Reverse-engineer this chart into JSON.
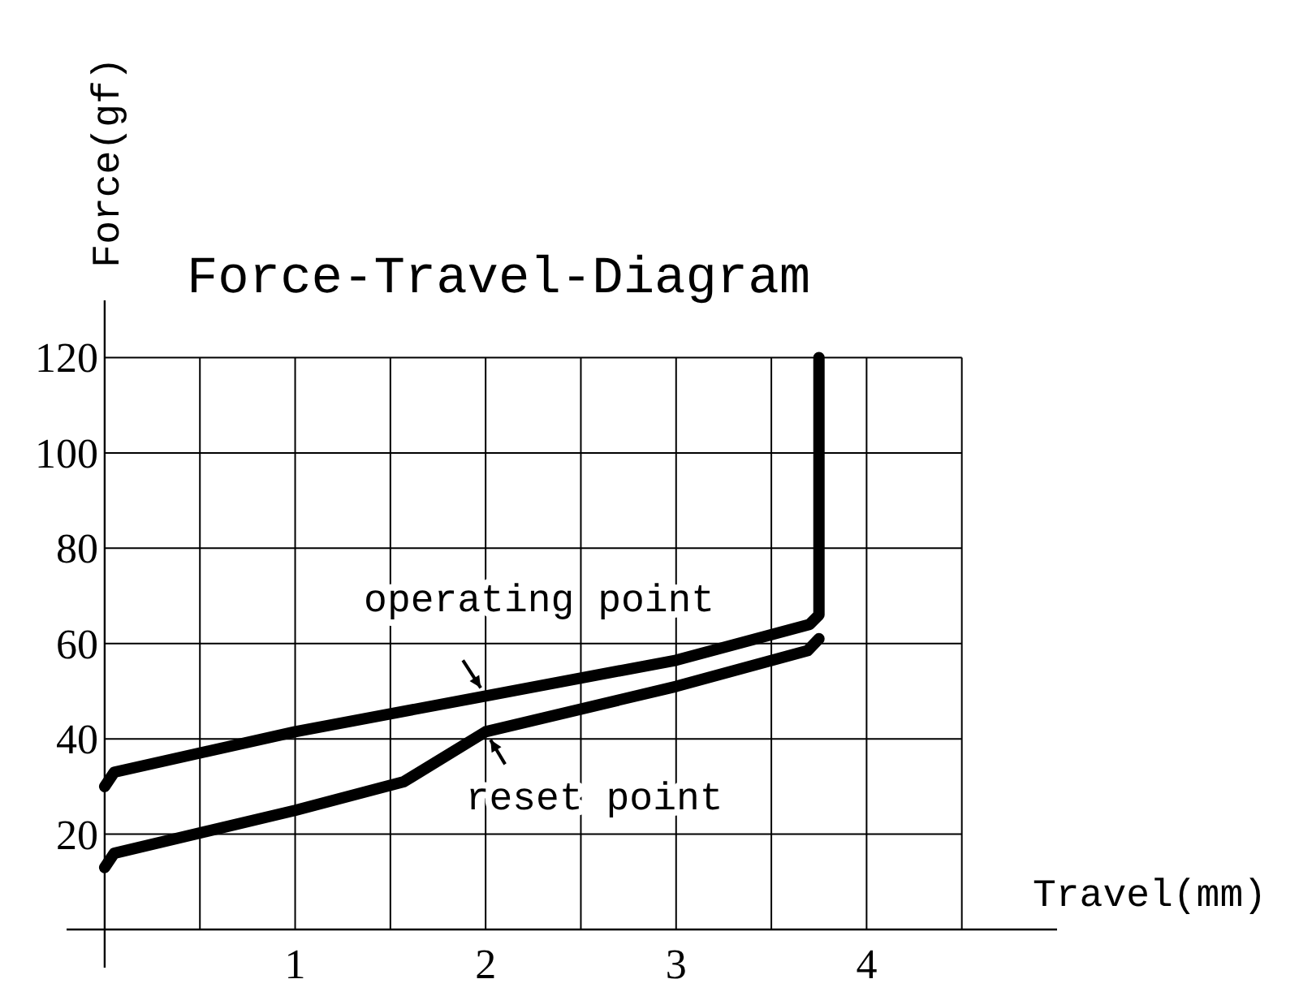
{
  "chart_data": {
    "type": "line",
    "title": "Force-Travel-Diagram",
    "xlabel": "Travel(mm)",
    "ylabel": "Force(gf)",
    "xlim": [
      -0.2,
      5
    ],
    "ylim": [
      -8,
      132
    ],
    "xticks": [
      {
        "value": 0.5,
        "label": null
      },
      1,
      {
        "value": 1.5,
        "label": null
      },
      2,
      {
        "value": 2.5,
        "label": null
      },
      3,
      {
        "value": 3.5,
        "label": null
      },
      4,
      {
        "value": 4.5,
        "label": null
      }
    ],
    "yticks": [
      20,
      40,
      60,
      80,
      100,
      120
    ],
    "grid": true,
    "line_style": "solid",
    "x": [
      0,
      0.05,
      1,
      2,
      3,
      3.7,
      3.75,
      3.75
    ],
    "series": [
      {
        "color": "#000000",
        "values": [
          30,
          33,
          41.5,
          49,
          56.5,
          64,
          66,
          120
        ]
      },
      {
        "color": "#000000",
        "x": [
          0,
          0.05,
          1,
          1.57,
          2,
          3,
          3.69,
          3.75
        ],
        "values": [
          13,
          16,
          25,
          31,
          41.5,
          51,
          58.5,
          61
        ]
      }
    ],
    "annotations": [
      {
        "text": "operating point",
        "x": 2,
        "y": 49
      },
      {
        "text": "reset point",
        "x": 2,
        "y": 41.5
      }
    ]
  }
}
